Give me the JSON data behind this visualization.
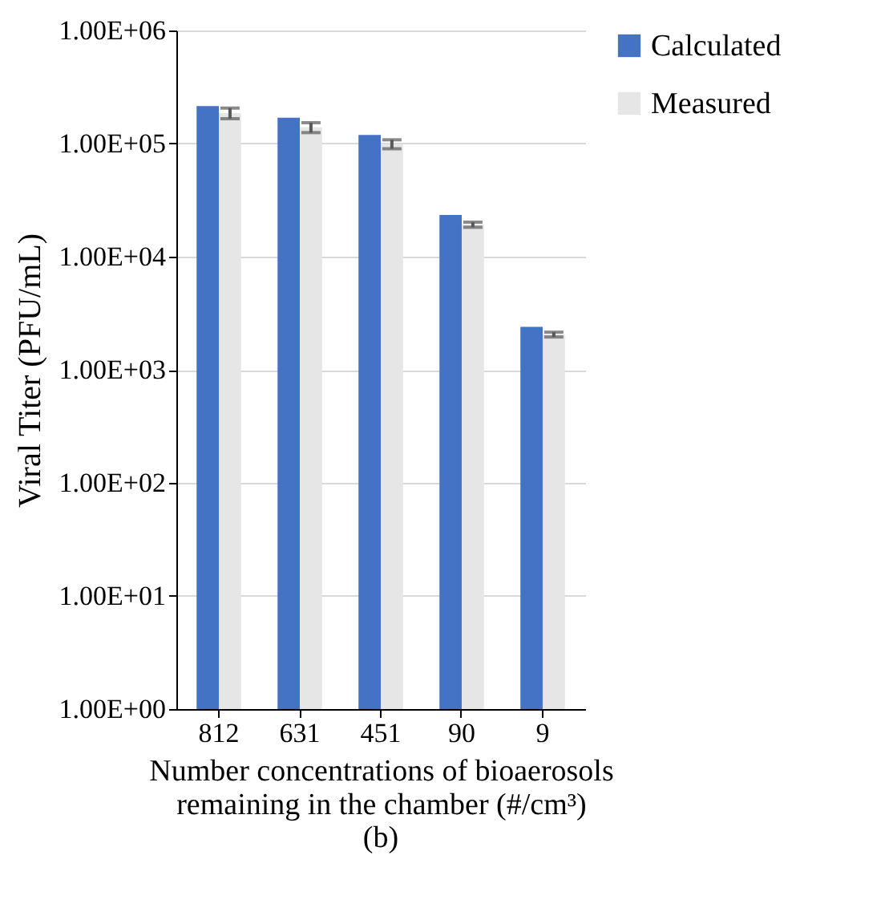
{
  "chart_data": {
    "type": "bar",
    "xlabel": "Number concentrations of bioaerosols remaining in the chamber (#/cm³)",
    "ylabel": "Viral Titer (PFU/mL)",
    "annotations": [
      "(b)"
    ],
    "categories": [
      "812",
      "631",
      "451",
      "90",
      "9"
    ],
    "series": [
      {
        "name": "Calculated",
        "color": "#4472c4",
        "values": [
          215000,
          169000,
          119000,
          23400,
          2400
        ]
      },
      {
        "name": "Measured",
        "color": "#e7e6e6",
        "values": [
          186000,
          139000,
          99000,
          19200,
          2050
        ],
        "errors": [
          20000,
          14000,
          9000,
          1000,
          100
        ]
      }
    ],
    "log": "y",
    "ylim": [
      1,
      1000000
    ],
    "yticks": [
      {
        "value": 1,
        "label": "1.00E+00"
      },
      {
        "value": 10,
        "label": "1.00E+01"
      },
      {
        "value": 100,
        "label": "1.00E+02"
      },
      {
        "value": 1000,
        "label": "1.00E+03"
      },
      {
        "value": 10000,
        "label": "1.00E+04"
      },
      {
        "value": 100000,
        "label": "1.00E+05"
      },
      {
        "value": 1000000,
        "label": "1.00E+06"
      }
    ],
    "grid": "y",
    "legend": "right"
  }
}
